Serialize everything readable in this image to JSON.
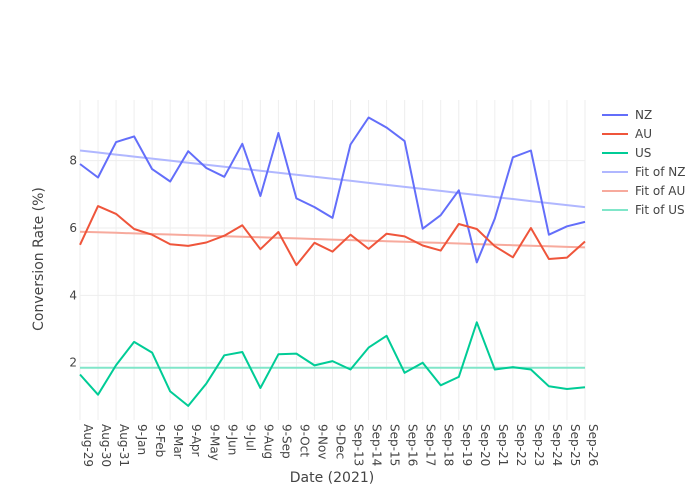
{
  "chart_data": {
    "type": "line",
    "title": "",
    "xlabel": "Date (2021)",
    "ylabel": "Conversion Rate (%)",
    "ylim": [
      0.3,
      9.8
    ],
    "yticks": [
      2,
      4,
      6,
      8
    ],
    "grid": true,
    "legend_position": "right",
    "categories": [
      "Aug-29",
      "Aug-30",
      "Aug-31",
      "9-Jan",
      "9-Feb",
      "9-Mar",
      "9-Apr",
      "9-May",
      "9-Jun",
      "9-Jul",
      "9-Aug",
      "9-Sep",
      "9-Oct",
      "9-Nov",
      "9-Dec",
      "Sep-13",
      "Sep-14",
      "Sep-15",
      "Sep-16",
      "Sep-17",
      "Sep-18",
      "Sep-19",
      "Sep-20",
      "Sep-21",
      "Sep-22",
      "Sep-23",
      "Sep-24",
      "Sep-25",
      "Sep-26"
    ],
    "series": [
      {
        "name": "NZ",
        "color": "#636efa",
        "kind": "data",
        "values": [
          7.9,
          7.5,
          8.55,
          8.72,
          7.75,
          7.38,
          8.28,
          7.78,
          7.52,
          8.5,
          6.95,
          8.82,
          6.88,
          6.62,
          6.3,
          8.48,
          9.28,
          8.98,
          8.58,
          5.98,
          6.38,
          7.12,
          4.98,
          6.28,
          8.1,
          8.3,
          5.8,
          6.05,
          6.18
        ]
      },
      {
        "name": "AU",
        "color": "#ef553b",
        "kind": "data",
        "values": [
          5.5,
          6.65,
          6.42,
          5.97,
          5.8,
          5.52,
          5.47,
          5.57,
          5.77,
          6.08,
          5.37,
          5.88,
          4.9,
          5.56,
          5.3,
          5.8,
          5.38,
          5.83,
          5.75,
          5.48,
          5.33,
          6.12,
          5.97,
          5.46,
          5.13,
          6.0,
          5.08,
          5.12,
          5.6
        ]
      },
      {
        "name": "US",
        "color": "#00cc96",
        "kind": "data",
        "values": [
          1.65,
          1.05,
          1.93,
          2.62,
          2.3,
          1.15,
          0.72,
          1.38,
          2.22,
          2.32,
          1.25,
          2.25,
          2.27,
          1.92,
          2.05,
          1.8,
          2.45,
          2.8,
          1.7,
          2.0,
          1.33,
          1.58,
          3.2,
          1.8,
          1.87,
          1.8,
          1.3,
          1.22,
          1.27
        ]
      },
      {
        "name": "Fit of NZ",
        "color": "#b0b7ff",
        "kind": "fit",
        "values": [
          8.3,
          8.24,
          8.18,
          8.12,
          8.06,
          8.0,
          7.94,
          7.88,
          7.82,
          7.76,
          7.7,
          7.64,
          7.58,
          7.52,
          7.46,
          7.4,
          7.34,
          7.28,
          7.22,
          7.16,
          7.1,
          7.04,
          6.98,
          6.92,
          6.86,
          6.8,
          6.74,
          6.68,
          6.62
        ]
      },
      {
        "name": "Fit of AU",
        "color": "#f7aa9d",
        "kind": "fit",
        "values": [
          5.89,
          5.873,
          5.857,
          5.84,
          5.823,
          5.807,
          5.79,
          5.773,
          5.757,
          5.74,
          5.723,
          5.707,
          5.69,
          5.673,
          5.657,
          5.64,
          5.623,
          5.607,
          5.59,
          5.573,
          5.557,
          5.54,
          5.523,
          5.507,
          5.49,
          5.473,
          5.457,
          5.44,
          5.423
        ]
      },
      {
        "name": "Fit of US",
        "color": "#80e6c9",
        "kind": "fit",
        "values": [
          1.85,
          1.85,
          1.85,
          1.85,
          1.85,
          1.85,
          1.85,
          1.85,
          1.85,
          1.85,
          1.85,
          1.85,
          1.85,
          1.85,
          1.85,
          1.85,
          1.85,
          1.85,
          1.85,
          1.85,
          1.85,
          1.85,
          1.85,
          1.85,
          1.85,
          1.85,
          1.85,
          1.85,
          1.85
        ]
      }
    ]
  }
}
